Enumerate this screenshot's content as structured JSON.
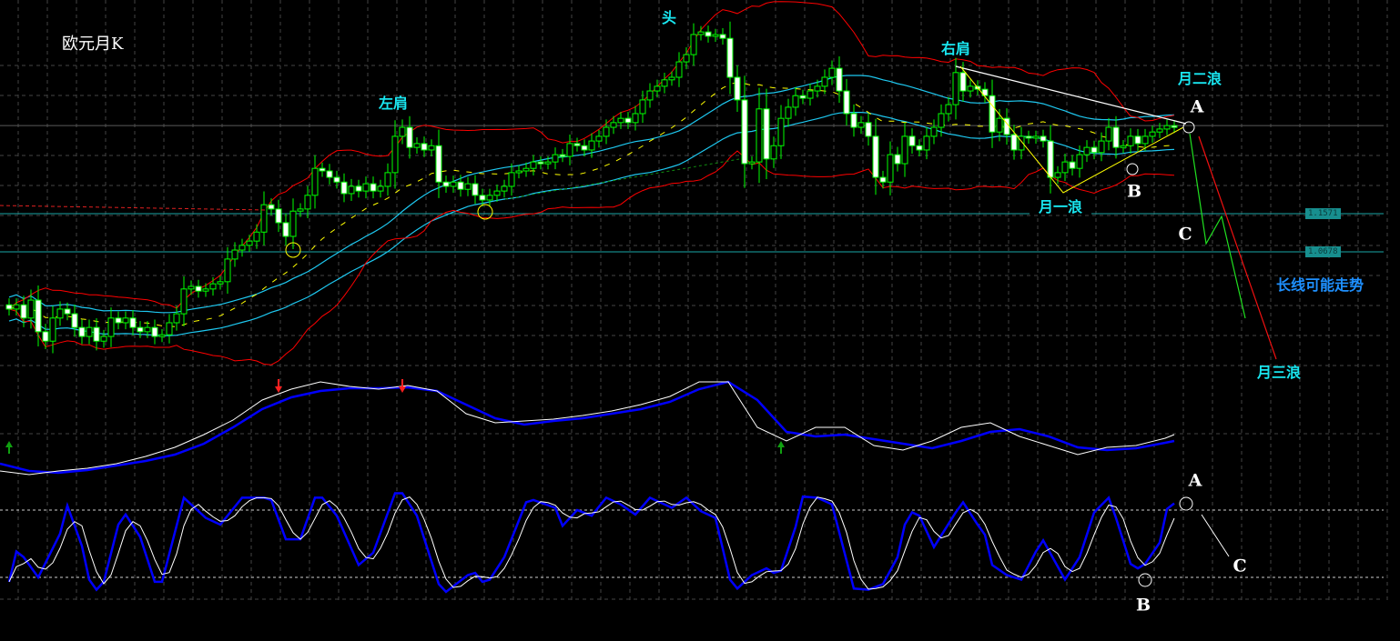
{
  "title": "欧元月K",
  "annotations": {
    "left_shoulder": "左肩",
    "head": "头",
    "right_shoulder": "右肩",
    "wave_two": "月二浪",
    "wave_one": "月一浪",
    "wave_three": "月三浪",
    "long_term_trend": "长线可能走势",
    "main_a": "A",
    "main_b": "B",
    "main_c": "C",
    "stoch_a": "A",
    "stoch_b": "B",
    "stoch_c": "C"
  },
  "price_labels": [
    "1.1571",
    "1.0678"
  ],
  "colors": {
    "background": "#000000",
    "candle_outline": "#00ff00",
    "bearish_fill": "#ffffff",
    "bollinger": "#ff0000",
    "envelope": "#1ec8f0",
    "middle_ma": "#ffff00",
    "level_line": "#1aa6a6",
    "indicator_fast": "#ffffff",
    "indicator_slow": "#0000ff",
    "label_cyan": "#19e6f0",
    "trend_label": "#1e90ff"
  },
  "chart_data": [
    {
      "type": "candlestick",
      "timeframe": "monthly",
      "closes": [
        0.934,
        0.944,
        0.913,
        0.955,
        0.881,
        0.859,
        0.913,
        0.934,
        0.923,
        0.891,
        0.87,
        0.891,
        0.859,
        0.87,
        0.913,
        0.902,
        0.913,
        0.891,
        0.881,
        0.891,
        0.87,
        0.874,
        0.902,
        0.923,
        0.981,
        0.987,
        0.976,
        0.981,
        0.993,
        0.998,
        1.051,
        1.072,
        1.083,
        1.093,
        1.114,
        1.178,
        1.168,
        1.136,
        1.104,
        1.163,
        1.168,
        1.2,
        1.263,
        1.257,
        1.242,
        1.231,
        1.204,
        1.221,
        1.21,
        1.227,
        1.21,
        1.221,
        1.253,
        1.338,
        1.359,
        1.312,
        1.321,
        1.306,
        1.316,
        1.231,
        1.221,
        1.231,
        1.214,
        1.227,
        1.2,
        1.189,
        1.2,
        1.21,
        1.221,
        1.253,
        1.257,
        1.263,
        1.278,
        1.274,
        1.278,
        1.295,
        1.291,
        1.321,
        1.316,
        1.306,
        1.327,
        1.338,
        1.359,
        1.37,
        1.38,
        1.37,
        1.391,
        1.423,
        1.444,
        1.455,
        1.47,
        1.476,
        1.512,
        1.529,
        1.576,
        1.582,
        1.572,
        1.576,
        1.567,
        1.476,
        1.423,
        1.274,
        1.278,
        1.402,
        1.285,
        1.316,
        1.38,
        1.406,
        1.433,
        1.427,
        1.444,
        1.455,
        1.476,
        1.497,
        1.444,
        1.391,
        1.359,
        1.37,
        1.338,
        1.242,
        1.231,
        1.295,
        1.274,
        1.338,
        1.316,
        1.306,
        1.338,
        1.359,
        1.391,
        1.412,
        1.487,
        1.444,
        1.455,
        1.448,
        1.433,
        1.348,
        1.38,
        1.342,
        1.306,
        1.338,
        1.334,
        1.338,
        1.327,
        1.242,
        1.253,
        1.278,
        1.263,
        1.295,
        1.312,
        1.3,
        1.327,
        1.359,
        1.312,
        1.316,
        1.338,
        1.321,
        1.338,
        1.348,
        1.355,
        1.363,
        1.359
      ],
      "horizontal_levels": [
        1.1571,
        1.0678
      ],
      "neckline_level": 1.363,
      "overlays": [
        "bollinger-bands",
        "moving-average",
        "envelope"
      ],
      "ylim": [
        0.8,
        1.66
      ]
    },
    {
      "type": "line",
      "panel": "oscillator-1",
      "fast": [
        12,
        8,
        12,
        15,
        20,
        28,
        38,
        52,
        68,
        90,
        102,
        110,
        105,
        102,
        106,
        100,
        75,
        65,
        67,
        69,
        73,
        78,
        85,
        94,
        110,
        110,
        60,
        45,
        60,
        60,
        40,
        35,
        45,
        60,
        65,
        50,
        40,
        30,
        38,
        40,
        48,
        52
      ],
      "slow": [
        20,
        12,
        10,
        13,
        18,
        23,
        30,
        42,
        60,
        80,
        93,
        100,
        103,
        103,
        104,
        100,
        85,
        70,
        63,
        67,
        70,
        75,
        80,
        88,
        102,
        110,
        90,
        55,
        50,
        52,
        47,
        42,
        37,
        45,
        55,
        58,
        50,
        38,
        35,
        37,
        43,
        45
      ],
      "signals": [
        {
          "bar": 0,
          "type": "buy"
        },
        {
          "bar": 37,
          "type": "sell"
        },
        {
          "bar": 54,
          "type": "sell"
        },
        {
          "bar": 106,
          "type": "buy"
        }
      ]
    },
    {
      "type": "line",
      "panel": "stochastic",
      "levels": [
        20,
        80
      ],
      "ylim": [
        0,
        100
      ],
      "k_points": [
        [
          0,
          16
        ],
        [
          1,
          43
        ],
        [
          2,
          38
        ],
        [
          4,
          20
        ],
        [
          7,
          59
        ],
        [
          8,
          84
        ],
        [
          10,
          48
        ],
        [
          11,
          18
        ],
        [
          12,
          9
        ],
        [
          13,
          16
        ],
        [
          15,
          67
        ],
        [
          16,
          76
        ],
        [
          18,
          56
        ],
        [
          20,
          16
        ],
        [
          21,
          16
        ],
        [
          24,
          91
        ],
        [
          27,
          73
        ],
        [
          29,
          67
        ],
        [
          32,
          91
        ],
        [
          35,
          91
        ],
        [
          36,
          89
        ],
        [
          38,
          54
        ],
        [
          40,
          54
        ],
        [
          42,
          91
        ],
        [
          43,
          91
        ],
        [
          45,
          75
        ],
        [
          48,
          31
        ],
        [
          50,
          42
        ],
        [
          53,
          95
        ],
        [
          54,
          95
        ],
        [
          56,
          75
        ],
        [
          59,
          14
        ],
        [
          60,
          7
        ],
        [
          63,
          22
        ],
        [
          64,
          24
        ],
        [
          65,
          16
        ],
        [
          66,
          18
        ],
        [
          68,
          38
        ],
        [
          71,
          87
        ],
        [
          72,
          89
        ],
        [
          75,
          82
        ],
        [
          76,
          66
        ],
        [
          78,
          80
        ],
        [
          80,
          75
        ],
        [
          82,
          91
        ],
        [
          84,
          85
        ],
        [
          86,
          76
        ],
        [
          88,
          91
        ],
        [
          91,
          82
        ],
        [
          93,
          91
        ],
        [
          95,
          79
        ],
        [
          97,
          73
        ],
        [
          99,
          18
        ],
        [
          100,
          10
        ],
        [
          102,
          22
        ],
        [
          104,
          28
        ],
        [
          105,
          24
        ],
        [
          106,
          26
        ],
        [
          108,
          65
        ],
        [
          109,
          92
        ],
        [
          111,
          91
        ],
        [
          113,
          85
        ],
        [
          116,
          10
        ],
        [
          118,
          9
        ],
        [
          120,
          14
        ],
        [
          122,
          38
        ],
        [
          123,
          67
        ],
        [
          124,
          78
        ],
        [
          125,
          75
        ],
        [
          127,
          47
        ],
        [
          130,
          78
        ],
        [
          131,
          87
        ],
        [
          133,
          67
        ],
        [
          134,
          58
        ],
        [
          135,
          31
        ],
        [
          137,
          22
        ],
        [
          139,
          18
        ],
        [
          141,
          43
        ],
        [
          142,
          53
        ],
        [
          145,
          18
        ],
        [
          147,
          38
        ],
        [
          149,
          78
        ],
        [
          151,
          91
        ],
        [
          152,
          73
        ],
        [
          154,
          32
        ],
        [
          155,
          28
        ],
        [
          156,
          32
        ],
        [
          158,
          51
        ],
        [
          159,
          81
        ],
        [
          160,
          86
        ]
      ]
    }
  ]
}
